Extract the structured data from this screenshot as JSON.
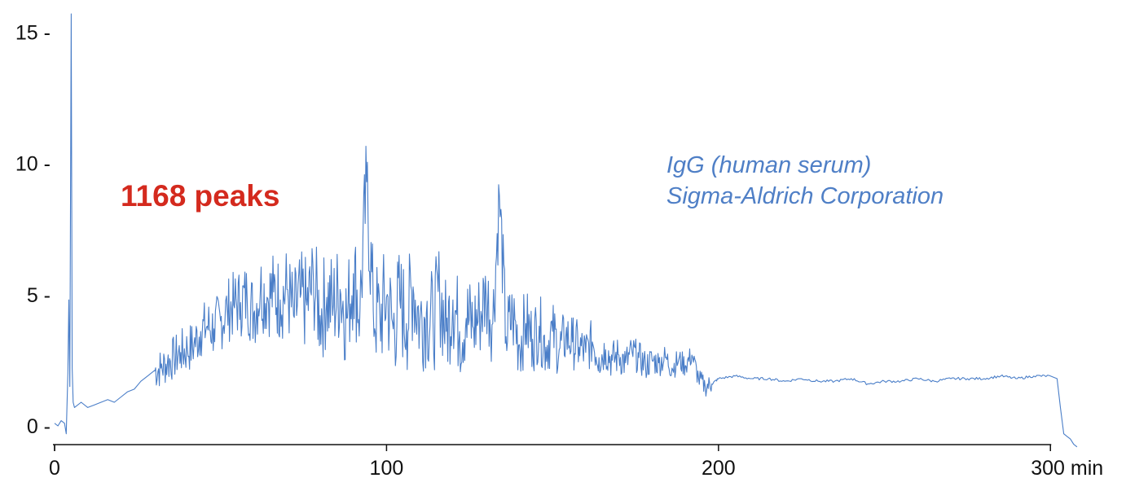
{
  "chart_data": {
    "type": "line",
    "title": "",
    "xlabel": "",
    "ylabel": "",
    "x_unit": "min",
    "xlim": [
      0,
      310
    ],
    "ylim": [
      0,
      15.7
    ],
    "x_ticks": [
      {
        "value": 0,
        "label": "0"
      },
      {
        "value": 100,
        "label": "100"
      },
      {
        "value": 200,
        "label": "200"
      },
      {
        "value": 300,
        "label": "300 min"
      }
    ],
    "y_ticks": [
      {
        "value": 0,
        "label": "0 -"
      },
      {
        "value": 5,
        "label": "5 -"
      },
      {
        "value": 10,
        "label": "10 -"
      },
      {
        "value": 15,
        "label": "15 -"
      }
    ],
    "grid": false,
    "line_color": "#4a7ec8",
    "series": [
      {
        "x": [
          0,
          1,
          2,
          3,
          3.5,
          4,
          4.3,
          4.6,
          5,
          5.3,
          5.6,
          6,
          8,
          10,
          12,
          14,
          16,
          18,
          20,
          22,
          24,
          26,
          28,
          30,
          32,
          34,
          36,
          38,
          40,
          42,
          44,
          46,
          48,
          50,
          52,
          54,
          56,
          58,
          60,
          62,
          64,
          66,
          68,
          70,
          72,
          74,
          76,
          78,
          80,
          82,
          84,
          86,
          88,
          90,
          92,
          94,
          96,
          98,
          100,
          102,
          104,
          106,
          108,
          110,
          112,
          114,
          116,
          118,
          120,
          122,
          124,
          126,
          128,
          130,
          132,
          134,
          136,
          138,
          140,
          142,
          144,
          146,
          148,
          150,
          152,
          154,
          156,
          158,
          160,
          162,
          164,
          166,
          168,
          170,
          172,
          174,
          176,
          178,
          180,
          182,
          184,
          186,
          188,
          190,
          192,
          194,
          196,
          198,
          200,
          205,
          210,
          215,
          220,
          225,
          230,
          235,
          240,
          245,
          250,
          255,
          260,
          265,
          270,
          275,
          280,
          285,
          290,
          295,
          300,
          302,
          303,
          304,
          305,
          306,
          307,
          308
        ],
        "y": [
          0.1,
          0.0,
          0.2,
          0.1,
          -0.3,
          2.0,
          4.8,
          1.5,
          15.7,
          2.2,
          0.9,
          0.7,
          0.9,
          0.7,
          0.8,
          0.9,
          1.0,
          0.9,
          1.1,
          1.3,
          1.4,
          1.7,
          1.9,
          2.1,
          2.2,
          2.4,
          2.6,
          2.8,
          2.9,
          3.1,
          3.6,
          3.8,
          3.7,
          4.0,
          4.4,
          4.6,
          4.7,
          4.9,
          4.3,
          5.2,
          4.9,
          5.1,
          4.8,
          5.2,
          4.2,
          4.9,
          4.6,
          5.5,
          4.2,
          4.9,
          4.6,
          5.2,
          4.1,
          5.8,
          4.4,
          9.3,
          4.4,
          4.1,
          4.9,
          3.7,
          4.8,
          3.9,
          5.3,
          4.0,
          4.3,
          3.9,
          5.1,
          3.6,
          4.8,
          3.6,
          4.1,
          3.8,
          4.2,
          5.0,
          3.9,
          8.8,
          3.4,
          4.2,
          3.1,
          3.9,
          3.3,
          3.8,
          3.0,
          3.6,
          2.9,
          3.4,
          3.2,
          3.0,
          2.8,
          3.2,
          2.6,
          2.9,
          2.5,
          2.7,
          2.4,
          2.8,
          2.6,
          2.3,
          2.5,
          2.4,
          2.6,
          2.2,
          2.5,
          2.3,
          2.7,
          1.8,
          1.5,
          1.6,
          1.8,
          1.9,
          1.8,
          1.8,
          1.7,
          1.8,
          1.7,
          1.7,
          1.8,
          1.6,
          1.7,
          1.7,
          1.8,
          1.7,
          1.8,
          1.8,
          1.8,
          1.9,
          1.8,
          1.9,
          1.9,
          1.8,
          0.7,
          -0.3,
          -0.4,
          -0.5,
          -0.7,
          -0.8
        ]
      }
    ],
    "annotations": [
      {
        "text": "1168 peaks",
        "color": "#d42a1e"
      },
      {
        "text": "IgG (human serum)",
        "color": "#4f7fc6"
      },
      {
        "text": "Sigma-Aldrich Corporation",
        "color": "#4f7fc6"
      }
    ]
  }
}
